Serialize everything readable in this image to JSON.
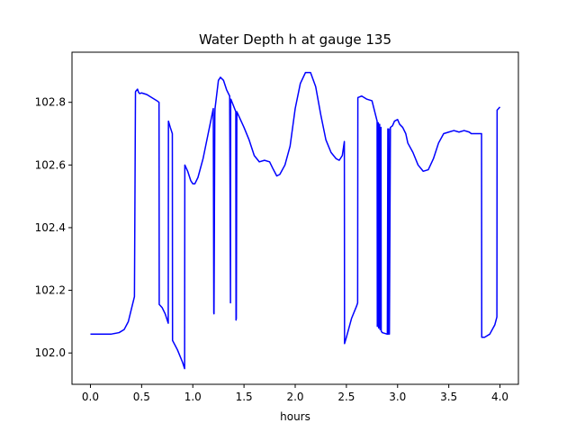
{
  "chart_data": {
    "type": "line",
    "title": "Water Depth h at gauge 135",
    "xlabel": "hours",
    "ylabel": "",
    "xlim": [
      -0.18,
      4.18
    ],
    "ylim": [
      101.9,
      102.96
    ],
    "x_ticks": [
      0.0,
      0.5,
      1.0,
      1.5,
      2.0,
      2.5,
      3.0,
      3.5,
      4.0
    ],
    "x_tick_labels": [
      "0.0",
      "0.5",
      "1.0",
      "1.5",
      "2.0",
      "2.5",
      "3.0",
      "3.5",
      "4.0"
    ],
    "y_ticks": [
      102.0,
      102.2,
      102.4,
      102.6,
      102.8
    ],
    "y_tick_labels": [
      "102.0",
      "102.2",
      "102.4",
      "102.6",
      "102.8"
    ],
    "grid": false,
    "series": [
      {
        "color": "#0000ff",
        "x": [
          0.0,
          0.2,
          0.28,
          0.33,
          0.37,
          0.4,
          0.43,
          0.44,
          0.442,
          0.46,
          0.47,
          0.48,
          0.5,
          0.55,
          0.6,
          0.65,
          0.67,
          0.672,
          0.7,
          0.73,
          0.76,
          0.762,
          0.78,
          0.8,
          0.802,
          0.85,
          0.9,
          0.92,
          0.922,
          0.95,
          0.98,
          1.0,
          1.02,
          1.05,
          1.1,
          1.15,
          1.2,
          1.205,
          1.207,
          1.215,
          1.217,
          1.25,
          1.27,
          1.3,
          1.33,
          1.36,
          1.368,
          1.37,
          1.372,
          1.42,
          1.422,
          1.425,
          1.43,
          1.5,
          1.55,
          1.6,
          1.65,
          1.7,
          1.75,
          1.78,
          1.82,
          1.85,
          1.9,
          1.95,
          2.0,
          2.05,
          2.1,
          2.15,
          2.2,
          2.25,
          2.3,
          2.35,
          2.4,
          2.43,
          2.46,
          2.48,
          2.482,
          2.5,
          2.55,
          2.6,
          2.61,
          2.612,
          2.65,
          2.7,
          2.75,
          2.8,
          2.802,
          2.812,
          2.815,
          2.825,
          2.828,
          2.838,
          2.84,
          2.85,
          2.9,
          2.905,
          2.91,
          2.915,
          2.92,
          2.93,
          2.95,
          2.97,
          3.0,
          3.02,
          3.05,
          3.08,
          3.1,
          3.15,
          3.2,
          3.25,
          3.3,
          3.35,
          3.4,
          3.45,
          3.5,
          3.55,
          3.6,
          3.65,
          3.7,
          3.72,
          3.75,
          3.8,
          3.82,
          3.822,
          3.85,
          3.9,
          3.95,
          3.97,
          3.972,
          4.0
        ],
        "y": [
          102.06,
          102.06,
          102.065,
          102.075,
          102.1,
          102.14,
          102.18,
          102.833,
          102.835,
          102.842,
          102.832,
          102.828,
          102.83,
          102.825,
          102.815,
          102.805,
          102.8,
          102.155,
          102.145,
          102.125,
          102.095,
          102.74,
          102.72,
          102.7,
          102.04,
          102.01,
          101.97,
          101.95,
          102.6,
          102.58,
          102.55,
          102.54,
          102.54,
          102.56,
          102.62,
          102.7,
          102.78,
          102.128,
          102.125,
          102.76,
          102.78,
          102.87,
          102.88,
          102.87,
          102.84,
          102.82,
          102.16,
          102.805,
          102.81,
          102.77,
          102.105,
          102.11,
          102.77,
          102.72,
          102.68,
          102.63,
          102.61,
          102.615,
          102.61,
          102.59,
          102.565,
          102.57,
          102.6,
          102.66,
          102.78,
          102.86,
          102.895,
          102.895,
          102.85,
          102.76,
          102.68,
          102.64,
          102.62,
          102.615,
          102.63,
          102.675,
          102.03,
          102.05,
          102.11,
          102.15,
          102.16,
          102.815,
          102.82,
          102.81,
          102.805,
          102.74,
          102.085,
          102.735,
          102.08,
          102.73,
          102.075,
          102.72,
          102.07,
          102.065,
          102.06,
          102.715,
          102.06,
          102.715,
          102.06,
          102.72,
          102.725,
          102.74,
          102.745,
          102.73,
          102.72,
          102.7,
          102.67,
          102.64,
          102.6,
          102.58,
          102.585,
          102.62,
          102.67,
          102.7,
          102.705,
          102.71,
          102.705,
          102.71,
          102.705,
          102.7,
          102.7,
          102.7,
          102.7,
          102.05,
          102.05,
          102.06,
          102.09,
          102.115,
          102.775,
          102.785
        ]
      }
    ]
  }
}
